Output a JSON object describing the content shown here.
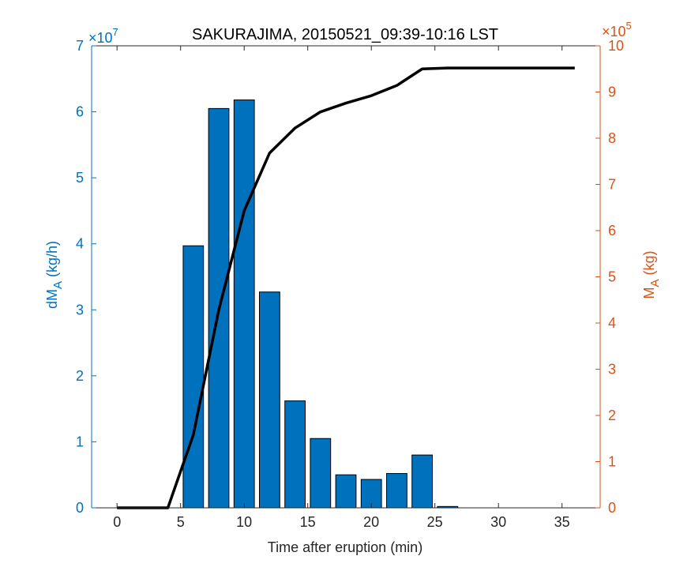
{
  "chart_data": {
    "type": "bar",
    "title": "SAKURAJIMA, 20150521_09:39-10:16 LST",
    "xlabel": "Time after eruption (min)",
    "ylabel_left": "dM",
    "ylabel_left_sub": "A",
    "ylabel_left_unit": " (kg/h)",
    "ylabel_right": "M",
    "ylabel_right_sub": "A",
    "ylabel_right_unit": " (kg)",
    "left_exponent": "×10",
    "left_exponent_power": "7",
    "right_exponent": "×10",
    "right_exponent_power": "5",
    "xlim": [
      -2,
      38
    ],
    "ylim_left": [
      0,
      7
    ],
    "ylim_right": [
      0,
      10
    ],
    "xticks": [
      0,
      5,
      10,
      15,
      20,
      25,
      30,
      35
    ],
    "yticks_left": [
      0,
      1,
      2,
      3,
      4,
      5,
      6,
      7
    ],
    "yticks_right": [
      0,
      1,
      2,
      3,
      4,
      5,
      6,
      7,
      8,
      9,
      10
    ],
    "bar_width": 1.6,
    "bars": {
      "x": [
        6,
        8,
        10,
        12,
        14,
        16,
        18,
        20,
        22,
        24,
        26
      ],
      "values": [
        3.97,
        6.05,
        6.18,
        3.27,
        1.62,
        1.05,
        0.5,
        0.43,
        0.52,
        0.8,
        0.02
      ],
      "color": "#0072BD"
    },
    "line": {
      "x": [
        0,
        4,
        6,
        8,
        10,
        12,
        14,
        16,
        18,
        20,
        22,
        24,
        26,
        28,
        30,
        32,
        34,
        36
      ],
      "values": [
        0,
        0,
        1.58,
        4.28,
        6.43,
        7.68,
        8.22,
        8.57,
        8.76,
        8.92,
        9.14,
        9.5,
        9.52,
        9.52,
        9.52,
        9.52,
        9.52,
        9.52
      ],
      "color": "#000000"
    },
    "colors": {
      "left_axis": "#0072BD",
      "right_axis": "#D95319",
      "bottom_axis": "#262626"
    },
    "grid": false,
    "legend": "none"
  }
}
